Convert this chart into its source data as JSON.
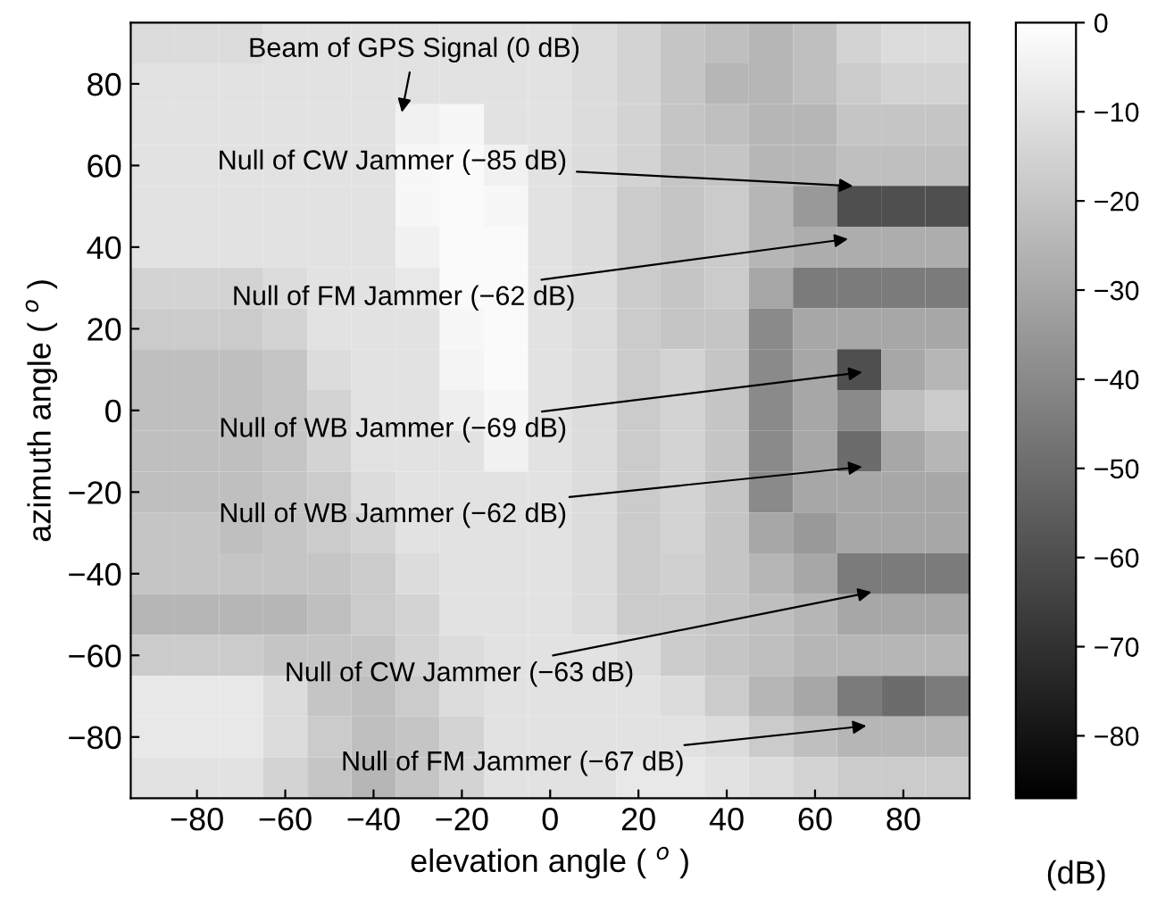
{
  "chart_data": {
    "type": "heatmap",
    "xlabel": "elevation angle ( $^{o}$ )",
    "ylabel": "azimuth angle ( $^{o}$ )",
    "clabel": "(dB)",
    "categories": [
      null,
      "−80",
      null,
      "−60",
      null,
      "−40",
      null,
      "−20",
      null,
      "0",
      null,
      "20",
      null,
      "40",
      null,
      "60",
      null,
      "80",
      null
    ],
    "y_categories": [
      null,
      "80",
      null,
      "60",
      null,
      "40",
      null,
      "20",
      null,
      "0",
      null,
      "−20",
      null,
      "−40",
      null,
      "−60",
      null,
      "−80",
      null
    ],
    "clim": [
      -87,
      0
    ],
    "cticks": [
      0,
      -10,
      -20,
      -30,
      -40,
      -50,
      -60,
      -70,
      -80
    ],
    "cells": [
      [
        -12,
        -12,
        -12,
        -10,
        -10,
        -10,
        -10,
        -10,
        -10,
        -10,
        -12,
        -15,
        -20,
        -22,
        -25,
        -22,
        -15,
        -12,
        -12
      ],
      [
        -10,
        -10,
        -10,
        -10,
        -10,
        -10,
        -10,
        -10,
        -10,
        -10,
        -12,
        -15,
        -20,
        -25,
        -25,
        -22,
        -18,
        -15,
        -15
      ],
      [
        -10,
        -10,
        -10,
        -10,
        -10,
        -10,
        -5,
        -3,
        -10,
        -10,
        -12,
        -15,
        -20,
        -22,
        -25,
        -25,
        -20,
        -20,
        -20
      ],
      [
        -10,
        -10,
        -10,
        -10,
        -10,
        -10,
        -3,
        -2,
        -5,
        -10,
        -12,
        -15,
        -20,
        -20,
        -25,
        -25,
        -22,
        -22,
        -22
      ],
      [
        -10,
        -10,
        -10,
        -10,
        -10,
        -10,
        -3,
        -2,
        -3,
        -10,
        -12,
        -18,
        -20,
        -18,
        -25,
        -35,
        -60,
        -60,
        -60
      ],
      [
        -10,
        -10,
        -10,
        -10,
        -10,
        -10,
        -5,
        -2,
        -2,
        -10,
        -12,
        -18,
        -20,
        -18,
        -25,
        -28,
        -28,
        -28,
        -28
      ],
      [
        -15,
        -15,
        -15,
        -12,
        -10,
        -10,
        -8,
        -2,
        -2,
        -10,
        -12,
        -18,
        -20,
        -18,
        -30,
        -45,
        -45,
        -45,
        -45
      ],
      [
        -18,
        -18,
        -18,
        -15,
        -10,
        -10,
        -10,
        -3,
        -2,
        -10,
        -12,
        -18,
        -20,
        -20,
        -40,
        -30,
        -30,
        -30,
        -30
      ],
      [
        -22,
        -22,
        -22,
        -20,
        -12,
        -10,
        -10,
        -4,
        -2,
        -10,
        -12,
        -18,
        -15,
        -20,
        -40,
        -30,
        -60,
        -30,
        -25
      ],
      [
        -22,
        -22,
        -22,
        -20,
        -15,
        -10,
        -10,
        -6,
        -3,
        -10,
        -12,
        -18,
        -15,
        -20,
        -40,
        -30,
        -40,
        -22,
        -18
      ],
      [
        -22,
        -22,
        -22,
        -20,
        -15,
        -10,
        -10,
        -10,
        -5,
        -10,
        -12,
        -18,
        -15,
        -20,
        -40,
        -30,
        -50,
        -30,
        -25
      ],
      [
        -22,
        -22,
        -22,
        -20,
        -18,
        -12,
        -10,
        -10,
        -10,
        -10,
        -12,
        -18,
        -15,
        -20,
        -40,
        -30,
        -30,
        -30,
        -30
      ],
      [
        -20,
        -20,
        -22,
        -20,
        -18,
        -15,
        -10,
        -10,
        -10,
        -10,
        -12,
        -18,
        -15,
        -20,
        -30,
        -35,
        -30,
        -30,
        -30
      ],
      [
        -20,
        -20,
        -20,
        -20,
        -20,
        -18,
        -12,
        -10,
        -10,
        -10,
        -12,
        -18,
        -16,
        -20,
        -25,
        -30,
        -45,
        -45,
        -45
      ],
      [
        -25,
        -25,
        -25,
        -25,
        -22,
        -18,
        -15,
        -10,
        -10,
        -10,
        -12,
        -18,
        -18,
        -20,
        -22,
        -25,
        -30,
        -30,
        -30
      ],
      [
        -18,
        -18,
        -18,
        -20,
        -20,
        -20,
        -15,
        -12,
        -10,
        -10,
        -10,
        -12,
        -18,
        -20,
        -22,
        -25,
        -25,
        -25,
        -25
      ],
      [
        -8,
        -8,
        -8,
        -12,
        -20,
        -22,
        -18,
        -12,
        -10,
        -10,
        -10,
        -10,
        -12,
        -18,
        -25,
        -30,
        -45,
        -50,
        -45
      ],
      [
        -8,
        -8,
        -8,
        -12,
        -18,
        -22,
        -20,
        -15,
        -10,
        -10,
        -10,
        -10,
        -10,
        -12,
        -18,
        -22,
        -25,
        -25,
        -25
      ],
      [
        -10,
        -10,
        -10,
        -15,
        -20,
        -25,
        -20,
        -15,
        -10,
        -10,
        -10,
        -8,
        -8,
        -10,
        -12,
        -15,
        -18,
        -18,
        -18
      ]
    ],
    "annotations": [
      "Beam of GPS Signal (0 dB)",
      "Null of CW Jammer (−85 dB)",
      "Null of FM Jammer (−62 dB)",
      "Null of WB Jammer (−69 dB)",
      "Null of WB Jammer (−62 dB)",
      "Null of CW Jammer (−63 dB)",
      "Null of FM Jammer (−67 dB)"
    ]
  }
}
